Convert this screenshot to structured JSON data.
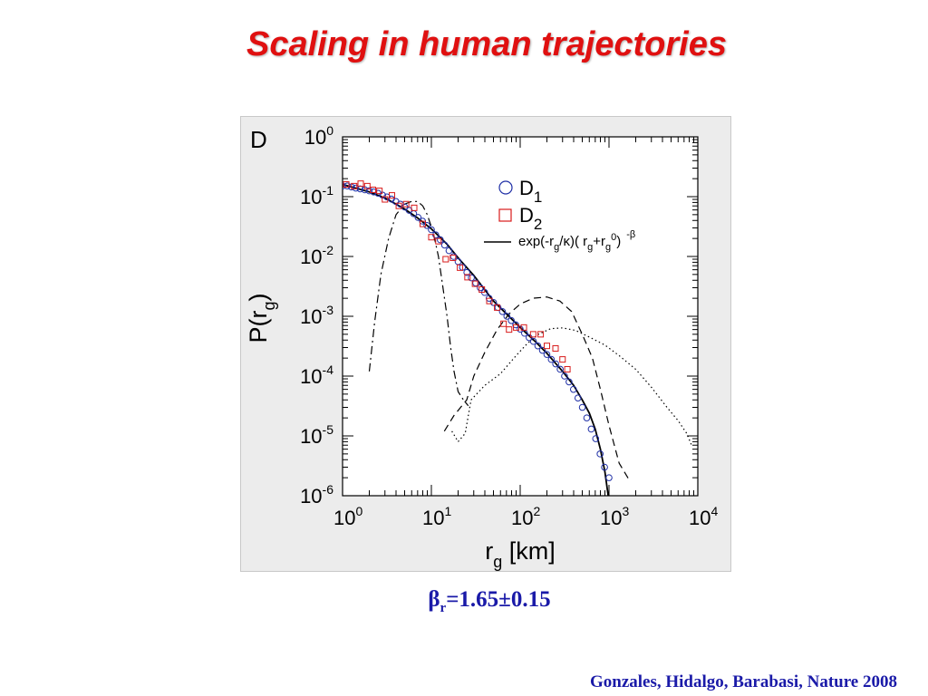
{
  "slide": {
    "title": "Scaling in  human trajectories",
    "panel_letter": "D",
    "beta_symbol": "β",
    "beta_subscript": "r",
    "beta_value": "=1.65±0.15",
    "citation": "Gonzales, Hidalgo, Barabasi, Nature 2008"
  },
  "chart_data": {
    "type": "scatter",
    "x_scale": "log",
    "y_scale": "log",
    "xlim": [
      1,
      10000
    ],
    "ylim": [
      1e-06,
      1
    ],
    "xlabel": {
      "main": "r",
      "sub": "g",
      "suffix": " [km]"
    },
    "ylabel": {
      "main": "P(r",
      "sub": "g",
      "suffix": ")"
    },
    "x_ticks": [
      {
        "value": 1,
        "base": "10",
        "exp": "0"
      },
      {
        "value": 10,
        "base": "10",
        "exp": "1"
      },
      {
        "value": 100,
        "base": "10",
        "exp": "2"
      },
      {
        "value": 1000,
        "base": "10",
        "exp": "3"
      },
      {
        "value": 10000,
        "base": "10",
        "exp": "4"
      }
    ],
    "y_ticks": [
      {
        "value": 1,
        "base": "10",
        "exp": "0"
      },
      {
        "value": 0.1,
        "base": "10",
        "exp": "-1"
      },
      {
        "value": 0.01,
        "base": "10",
        "exp": "-2"
      },
      {
        "value": 0.001,
        "base": "10",
        "exp": "-3"
      },
      {
        "value": 0.0001,
        "base": "10",
        "exp": "-4"
      },
      {
        "value": 1e-05,
        "base": "10",
        "exp": "-5"
      },
      {
        "value": 1e-06,
        "base": "10",
        "exp": "-6"
      }
    ],
    "grid": false,
    "legend_position": "top-right",
    "legend": [
      {
        "label": "D",
        "sub": "1",
        "marker": "circle",
        "color": "#1f2fa6"
      },
      {
        "label": "D",
        "sub": "2",
        "marker": "square",
        "color": "#d81b1b"
      },
      {
        "label": "exp(-r",
        "sub": "g",
        "mid": "/κ)( r",
        "sub2": "g",
        "mid2": "+r",
        "sub3": "g",
        "sup3": "0",
        "end": ")",
        "sup_end": "-β",
        "marker": "solid-line",
        "color": "#000000"
      }
    ],
    "series": [
      {
        "name": "D1",
        "marker": "circle",
        "color": "#1f2fa6",
        "points": [
          [
            1.0,
            0.151
          ],
          [
            1.13,
            0.151
          ],
          [
            1.26,
            0.145
          ],
          [
            1.41,
            0.139
          ],
          [
            1.58,
            0.135
          ],
          [
            1.78,
            0.13
          ],
          [
            2.0,
            0.125
          ],
          [
            2.24,
            0.12
          ],
          [
            2.51,
            0.114
          ],
          [
            2.82,
            0.106
          ],
          [
            3.16,
            0.099
          ],
          [
            3.55,
            0.091
          ],
          [
            3.98,
            0.083
          ],
          [
            4.47,
            0.075
          ],
          [
            5.01,
            0.067
          ],
          [
            5.62,
            0.059
          ],
          [
            6.31,
            0.052
          ],
          [
            7.08,
            0.045
          ],
          [
            7.94,
            0.039
          ],
          [
            8.91,
            0.033
          ],
          [
            10.0,
            0.028
          ],
          [
            11.2,
            0.023
          ],
          [
            12.6,
            0.019
          ],
          [
            14.1,
            0.0155
          ],
          [
            15.8,
            0.0125
          ],
          [
            17.8,
            0.01
          ],
          [
            20.0,
            0.0082
          ],
          [
            22.4,
            0.0066
          ],
          [
            25.1,
            0.0054
          ],
          [
            28.2,
            0.0044
          ],
          [
            31.6,
            0.0036
          ],
          [
            35.5,
            0.003
          ],
          [
            39.8,
            0.0025
          ],
          [
            44.7,
            0.002
          ],
          [
            50.1,
            0.0017
          ],
          [
            56.2,
            0.0014
          ],
          [
            63.1,
            0.0012
          ],
          [
            70.8,
            0.001
          ],
          [
            79.4,
            0.00085
          ],
          [
            89.1,
            0.00072
          ],
          [
            100,
            0.00061
          ],
          [
            112,
            0.00052
          ],
          [
            126,
            0.00044
          ],
          [
            141,
            0.00038
          ],
          [
            158,
            0.00032
          ],
          [
            178,
            0.00027
          ],
          [
            200,
            0.00023
          ],
          [
            224,
            0.00019
          ],
          [
            251,
            0.00016
          ],
          [
            282,
            0.00013
          ],
          [
            316,
            0.0001
          ],
          [
            355,
            8e-05
          ],
          [
            398,
            6e-05
          ],
          [
            447,
            4.3e-05
          ],
          [
            501,
            3e-05
          ],
          [
            562,
            2e-05
          ],
          [
            631,
            1.3e-05
          ],
          [
            708,
            9e-06
          ],
          [
            794,
            5e-06
          ],
          [
            891,
            3e-06
          ],
          [
            1000,
            2e-06
          ]
        ]
      },
      {
        "name": "D2",
        "marker": "square",
        "color": "#d81b1b",
        "points": [
          [
            1.1,
            0.16
          ],
          [
            1.35,
            0.15
          ],
          [
            1.6,
            0.165
          ],
          [
            1.9,
            0.15
          ],
          [
            2.2,
            0.13
          ],
          [
            2.6,
            0.125
          ],
          [
            3.0,
            0.09
          ],
          [
            3.6,
            0.105
          ],
          [
            4.3,
            0.07
          ],
          [
            5.2,
            0.075
          ],
          [
            6.4,
            0.065
          ],
          [
            8.0,
            0.035
          ],
          [
            10.0,
            0.021
          ],
          [
            12.0,
            0.018
          ],
          [
            14.5,
            0.009
          ],
          [
            17.5,
            0.0095
          ],
          [
            21.0,
            0.0065
          ],
          [
            25.5,
            0.0045
          ],
          [
            31.0,
            0.0035
          ],
          [
            37.0,
            0.0028
          ],
          [
            45.0,
            0.0018
          ],
          [
            55.0,
            0.0014
          ],
          [
            65.0,
            0.00075
          ],
          [
            75.0,
            0.0006
          ],
          [
            90.0,
            0.00065
          ],
          [
            110,
            0.00065
          ],
          [
            140,
            0.0005
          ],
          [
            170,
            0.0005
          ],
          [
            200,
            0.00032
          ],
          [
            250,
            0.00029
          ],
          [
            300,
            0.00019
          ],
          [
            340,
            0.00013
          ]
        ]
      },
      {
        "name": "exp(-rg/κ)(rg+rg0)^-β",
        "style": "solid",
        "color": "#000000",
        "points": [
          [
            1.0,
            0.16
          ],
          [
            2.0,
            0.12
          ],
          [
            3.0,
            0.095
          ],
          [
            5.0,
            0.062
          ],
          [
            7.0,
            0.044
          ],
          [
            10.0,
            0.029
          ],
          [
            15.0,
            0.016
          ],
          [
            20.0,
            0.0095
          ],
          [
            30.0,
            0.0048
          ],
          [
            50.0,
            0.0018
          ],
          [
            70.0,
            0.0011
          ],
          [
            100,
            0.00065
          ],
          [
            150,
            0.00037
          ],
          [
            200,
            0.00024
          ],
          [
            300,
            0.00012
          ],
          [
            400,
            7e-05
          ],
          [
            500,
            4e-05
          ],
          [
            600,
            2.4e-05
          ],
          [
            700,
            1.3e-05
          ],
          [
            800,
            6e-06
          ],
          [
            900,
            2.5e-06
          ],
          [
            1000,
            8e-07
          ]
        ]
      },
      {
        "name": "",
        "style": "dash-dot",
        "color": "#000000",
        "points": [
          [
            2.0,
            0.00012
          ],
          [
            2.3,
            0.0008
          ],
          [
            2.7,
            0.005
          ],
          [
            3.3,
            0.02
          ],
          [
            4.0,
            0.05
          ],
          [
            5.0,
            0.075
          ],
          [
            6.0,
            0.083
          ],
          [
            7.0,
            0.083
          ],
          [
            8.0,
            0.07
          ],
          [
            9.0,
            0.05
          ],
          [
            10.5,
            0.025
          ],
          [
            12.0,
            0.01
          ],
          [
            13.5,
            0.003
          ],
          [
            15.0,
            0.001
          ],
          [
            16.5,
            0.0003
          ],
          [
            18.0,
            0.00012
          ],
          [
            20.0,
            5.5e-05
          ],
          [
            23.0,
            4e-05
          ],
          [
            26.0,
            3.2e-05
          ]
        ]
      },
      {
        "name": "",
        "style": "dashed",
        "color": "#000000",
        "points": [
          [
            14.0,
            1.2e-05
          ],
          [
            18.0,
            2.2e-05
          ],
          [
            25.0,
            4e-05
          ],
          [
            30.0,
            0.0001
          ],
          [
            40.0,
            0.00025
          ],
          [
            55.0,
            0.0006
          ],
          [
            75.0,
            0.0011
          ],
          [
            100,
            0.0016
          ],
          [
            140,
            0.002
          ],
          [
            200,
            0.0021
          ],
          [
            280,
            0.0018
          ],
          [
            380,
            0.0012
          ],
          [
            500,
            0.0005
          ],
          [
            650,
            0.0002
          ],
          [
            800,
            6e-05
          ],
          [
            1000,
            1.5e-05
          ],
          [
            1300,
            3.5e-06
          ],
          [
            1700,
            1.8e-06
          ]
        ]
      },
      {
        "name": "",
        "style": "dotted",
        "color": "#000000",
        "points": [
          [
            17.0,
            1.2e-05
          ],
          [
            20.0,
            8e-06
          ],
          [
            24.0,
            1.1e-05
          ],
          [
            28.0,
            4e-05
          ],
          [
            40.0,
            7e-05
          ],
          [
            60.0,
            0.00011
          ],
          [
            90.0,
            0.00022
          ],
          [
            120,
            0.00035
          ],
          [
            160,
            0.0005
          ],
          [
            220,
            0.00062
          ],
          [
            300,
            0.00064
          ],
          [
            420,
            0.00058
          ],
          [
            600,
            0.00045
          ],
          [
            900,
            0.00033
          ],
          [
            1300,
            0.00022
          ],
          [
            2000,
            0.00013
          ],
          [
            3000,
            6.5e-05
          ],
          [
            4500,
            3e-05
          ],
          [
            6000,
            1.8e-05
          ],
          [
            7500,
            1.1e-05
          ],
          [
            8500,
            7e-06
          ]
        ]
      }
    ]
  }
}
